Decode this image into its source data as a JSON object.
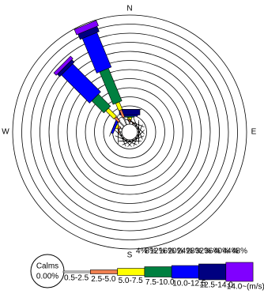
{
  "chart_data": {
    "type": "windrose",
    "categories": [
      "N",
      null,
      null,
      null,
      "E",
      null,
      null,
      null,
      "S",
      null,
      null,
      null,
      "W",
      null,
      null,
      null
    ],
    "series": [
      {
        "name": "0.5-2.5",
        "color": "#ffffff",
        "values": [
          1,
          0.5,
          0.5,
          0.5,
          0.5,
          0.5,
          0.5,
          0.5,
          0.5,
          0.5,
          0.5,
          0.5,
          1,
          1,
          3,
          3.5
        ]
      },
      {
        "name": "2.5-5.0",
        "color": "#f08050",
        "values": [
          1,
          0.5,
          0,
          0,
          0,
          0,
          0,
          0,
          0,
          0,
          0,
          0,
          0.5,
          1,
          2.5,
          3.5
        ]
      },
      {
        "name": "5.0-7.5",
        "color": "#ffff00",
        "values": [
          1,
          0,
          0,
          0,
          0,
          0,
          0,
          0,
          0,
          0,
          0,
          0,
          0,
          1,
          5,
          3.5
        ]
      },
      {
        "name": "7.5-10.0",
        "color": "#008040",
        "values": [
          0.5,
          0,
          0,
          0,
          0,
          0,
          0,
          0,
          0,
          0,
          0,
          0,
          0,
          0,
          7.5,
          15.5
        ]
      },
      {
        "name": "10.0-12.5",
        "color": "#0000ff",
        "values": [
          0.5,
          0,
          0,
          0,
          0,
          0,
          0,
          0,
          0,
          0,
          0,
          0,
          0,
          1,
          17.5,
          16.5
        ]
      },
      {
        "name": "12.5-14.0",
        "color": "#000080",
        "values": [
          2.5,
          0,
          0,
          0,
          0,
          0,
          0,
          0,
          0,
          0,
          0,
          0,
          0,
          0,
          1.5,
          2.5
        ]
      },
      {
        "name": "14.0~(m/s)",
        "color": "#8000ff",
        "values": [
          0,
          0,
          0,
          0,
          0,
          0,
          0,
          0,
          0,
          0,
          0,
          0,
          0,
          0,
          1.5,
          2.5
        ]
      }
    ],
    "rlim": [
      0,
      48
    ],
    "rticks": [
      {
        "value": 4,
        "label": "4%"
      },
      {
        "value": 8,
        "label": "8%"
      },
      {
        "value": 12,
        "label": "12%"
      },
      {
        "value": 16,
        "label": "16%"
      },
      {
        "value": 20,
        "label": "20%"
      },
      {
        "value": 24,
        "label": "24%"
      },
      {
        "value": 28,
        "label": "28%"
      },
      {
        "value": 32,
        "label": "32%"
      },
      {
        "value": 36,
        "label": "36%"
      },
      {
        "value": 40,
        "label": "40%"
      },
      {
        "value": 44,
        "label": "44%"
      },
      {
        "value": 48,
        "label": "48%"
      }
    ],
    "calms": {
      "title": "Calms",
      "value": 0,
      "label": "0.00%"
    }
  }
}
